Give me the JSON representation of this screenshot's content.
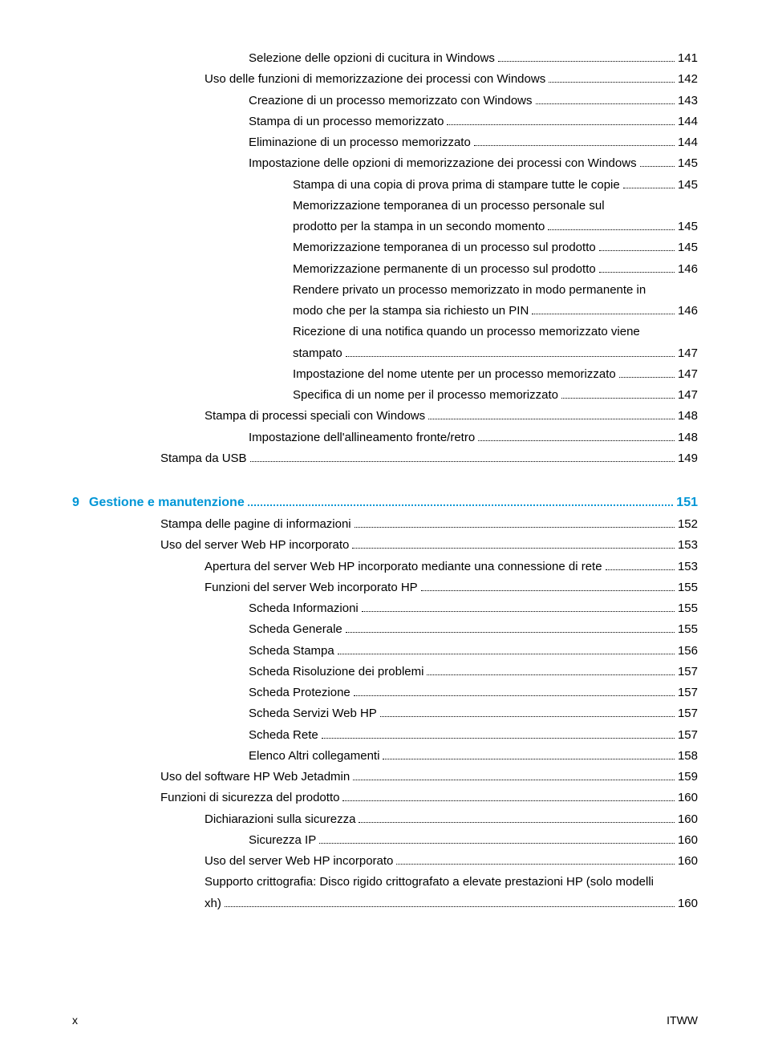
{
  "colors": {
    "text": "#000000",
    "accent": "#0096d6",
    "background": "#ffffff"
  },
  "typography": {
    "body_fontsize": 15,
    "chapter_fontsize": 16,
    "footer_fontsize": 14,
    "font_family": "Arial"
  },
  "toc": [
    {
      "indent": 4,
      "text": "Selezione delle opzioni di cucitura in Windows",
      "page": "141",
      "nodots": true
    },
    {
      "indent": 3,
      "text": "Uso delle funzioni di memorizzazione dei processi con Windows",
      "page": "142"
    },
    {
      "indent": 4,
      "text": "Creazione di un processo memorizzato con Windows",
      "page": "143"
    },
    {
      "indent": 4,
      "text": "Stampa di un processo memorizzato",
      "page": "144"
    },
    {
      "indent": 4,
      "text": "Eliminazione di un processo memorizzato",
      "page": "144"
    },
    {
      "indent": 4,
      "text": "Impostazione delle opzioni di memorizzazione dei processi con Windows",
      "page": "145",
      "inlineSep": " ... "
    },
    {
      "indent": 4,
      "text": "Stampa di una copia di prova prima di stampare tutte le copie",
      "page": "145",
      "inlineSep": " .... ",
      "subIndent": 55
    },
    {
      "indent": 4,
      "wrap": true,
      "lines": [
        "Memorizzazione temporanea di un processo personale sul",
        "prodotto per la stampa in un secondo momento"
      ],
      "page": "145",
      "subIndent": 55
    },
    {
      "indent": 4,
      "text": "Memorizzazione temporanea di un processo sul prodotto",
      "page": "145",
      "subIndent": 55
    },
    {
      "indent": 4,
      "text": "Memorizzazione permanente di un processo sul prodotto",
      "page": "146",
      "subIndent": 55
    },
    {
      "indent": 4,
      "wrap": true,
      "lines": [
        "Rendere privato un processo memorizzato in modo permanente in",
        "modo che per la stampa sia richiesto un PIN"
      ],
      "page": "146",
      "subIndent": 55
    },
    {
      "indent": 4,
      "wrap": true,
      "lines": [
        "Ricezione di una notifica quando un processo memorizzato viene",
        "stampato"
      ],
      "page": "147",
      "subIndent": 55
    },
    {
      "indent": 4,
      "text": "Impostazione del nome utente per un processo memorizzato",
      "page": "147",
      "subIndent": 55
    },
    {
      "indent": 4,
      "text": "Specifica di un nome per il processo memorizzato",
      "page": "147",
      "subIndent": 55
    },
    {
      "indent": 3,
      "text": "Stampa di processi speciali con Windows",
      "page": "148"
    },
    {
      "indent": 4,
      "text": "Impostazione dell'allineamento fronte/retro",
      "page": "148"
    },
    {
      "indent": 2,
      "text": "Stampa da USB",
      "page": "149"
    }
  ],
  "chapter": {
    "num": "9",
    "title": "Gestione e manutenzione",
    "page": "151"
  },
  "toc2": [
    {
      "indent": 2,
      "text": "Stampa delle pagine di informazioni",
      "page": "152"
    },
    {
      "indent": 2,
      "text": "Uso del server Web HP incorporato",
      "page": "153"
    },
    {
      "indent": 3,
      "text": "Apertura del server Web HP incorporato mediante una connessione di rete",
      "page": "153"
    },
    {
      "indent": 3,
      "text": "Funzioni del server Web incorporato HP",
      "page": "155"
    },
    {
      "indent": 4,
      "text": "Scheda Informazioni",
      "page": "155"
    },
    {
      "indent": 4,
      "text": "Scheda Generale",
      "page": "155"
    },
    {
      "indent": 4,
      "text": "Scheda Stampa",
      "page": "156"
    },
    {
      "indent": 4,
      "text": "Scheda Risoluzione dei problemi",
      "page": "157"
    },
    {
      "indent": 4,
      "text": "Scheda Protezione",
      "page": "157"
    },
    {
      "indent": 4,
      "text": "Scheda Servizi Web HP",
      "page": "157"
    },
    {
      "indent": 4,
      "text": "Scheda Rete",
      "page": "157"
    },
    {
      "indent": 4,
      "text": "Elenco Altri collegamenti",
      "page": "158"
    },
    {
      "indent": 2,
      "text": "Uso del software HP Web Jetadmin",
      "page": "159"
    },
    {
      "indent": 2,
      "text": "Funzioni di sicurezza del prodotto",
      "page": "160"
    },
    {
      "indent": 3,
      "text": "Dichiarazioni sulla sicurezza",
      "page": "160"
    },
    {
      "indent": 4,
      "text": "Sicurezza IP",
      "page": "160"
    },
    {
      "indent": 3,
      "text": "Uso del server Web HP incorporato",
      "page": "160"
    },
    {
      "indent": 3,
      "wrap": true,
      "lines": [
        "Supporto crittografia: Disco rigido crittografato a elevate prestazioni HP (solo modelli",
        "xh)"
      ],
      "page": "160"
    }
  ],
  "footer": {
    "left": "x",
    "right": "ITWW"
  }
}
